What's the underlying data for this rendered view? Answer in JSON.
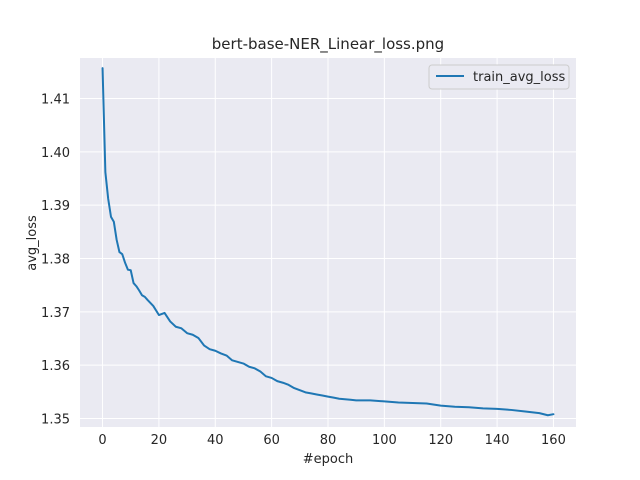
{
  "chart_data": {
    "type": "line",
    "title": "bert-base-NER_Linear_loss.png",
    "xlabel": "#epoch",
    "ylabel": "avg_loss",
    "xlim": [
      -8,
      168
    ],
    "ylim": [
      1.3484,
      1.4176
    ],
    "xticks": [
      0,
      20,
      40,
      60,
      80,
      100,
      120,
      140,
      160
    ],
    "xtick_labels": [
      "0",
      "20",
      "40",
      "60",
      "80",
      "100",
      "120",
      "140",
      "160"
    ],
    "yticks": [
      1.35,
      1.36,
      1.37,
      1.38,
      1.39,
      1.4,
      1.41
    ],
    "ytick_labels": [
      "1.35",
      "1.36",
      "1.37",
      "1.38",
      "1.39",
      "1.40",
      "1.41"
    ],
    "grid": true,
    "legend_position": "top-right",
    "colors": {
      "background": "#eaeaf2",
      "grid": "#ffffff",
      "line": "#1f77b4"
    },
    "series": [
      {
        "name": "train_avg_loss",
        "x": [
          0,
          1,
          2,
          3,
          4,
          5,
          6,
          7,
          8,
          9,
          10,
          11,
          12,
          13,
          14,
          15,
          16,
          18,
          20,
          22,
          24,
          26,
          28,
          30,
          32,
          34,
          36,
          38,
          40,
          42,
          44,
          46,
          48,
          50,
          52,
          54,
          56,
          58,
          60,
          62,
          64,
          66,
          68,
          70,
          72,
          74,
          76,
          78,
          80,
          82,
          84,
          86,
          88,
          90,
          95,
          100,
          105,
          110,
          115,
          120,
          125,
          130,
          135,
          140,
          145,
          150,
          155,
          158,
          160
        ],
        "y": [
          1.4157,
          1.3962,
          1.3912,
          1.3878,
          1.3869,
          1.3835,
          1.3812,
          1.3808,
          1.3792,
          1.3779,
          1.3778,
          1.3754,
          1.3748,
          1.374,
          1.3731,
          1.3728,
          1.3722,
          1.3711,
          1.3694,
          1.3698,
          1.3682,
          1.3672,
          1.3669,
          1.366,
          1.3657,
          1.3651,
          1.3637,
          1.363,
          1.3627,
          1.3622,
          1.3618,
          1.3609,
          1.3606,
          1.3603,
          1.3597,
          1.3594,
          1.3588,
          1.3579,
          1.3576,
          1.357,
          1.3567,
          1.3563,
          1.3557,
          1.3553,
          1.3549,
          1.3547,
          1.3545,
          1.3543,
          1.3541,
          1.3539,
          1.3537,
          1.3536,
          1.3535,
          1.3534,
          1.3534,
          1.3532,
          1.353,
          1.3529,
          1.3528,
          1.3524,
          1.3522,
          1.3521,
          1.3519,
          1.3518,
          1.3516,
          1.3513,
          1.351,
          1.3506,
          1.3508
        ]
      }
    ]
  }
}
